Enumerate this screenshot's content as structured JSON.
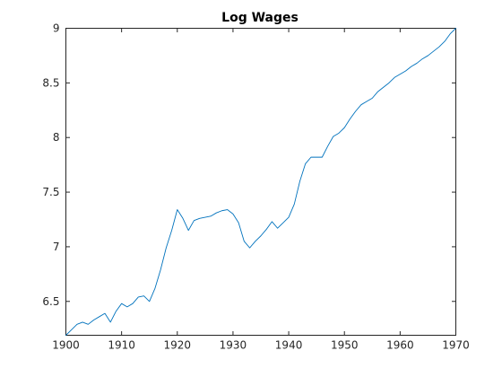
{
  "chart_data": {
    "type": "line",
    "title": "Log Wages",
    "xlabel": "",
    "ylabel": "",
    "xlim": [
      1900,
      1970
    ],
    "ylim": [
      6.19,
      9.0
    ],
    "xticks": [
      1900,
      1910,
      1920,
      1930,
      1940,
      1950,
      1960,
      1970
    ],
    "xtick_labels": [
      "1900",
      "1910",
      "1920",
      "1930",
      "1940",
      "1950",
      "1960",
      "1970"
    ],
    "yticks": [
      6.5,
      7,
      7.5,
      8,
      8.5,
      9
    ],
    "ytick_labels": [
      "6.5",
      "7",
      "7.5",
      "8",
      "8.5",
      "9"
    ],
    "grid": false,
    "legend": "none",
    "line_color": "#0072BD",
    "series": [
      {
        "x": [
          1900,
          1901,
          1902,
          1903,
          1904,
          1905,
          1906,
          1907,
          1908,
          1909,
          1910,
          1911,
          1912,
          1913,
          1914,
          1915,
          1916,
          1917,
          1918,
          1919,
          1920,
          1921,
          1922,
          1923,
          1924,
          1925,
          1926,
          1927,
          1928,
          1929,
          1930,
          1931,
          1932,
          1933,
          1934,
          1935,
          1936,
          1937,
          1938,
          1939,
          1940,
          1941,
          1942,
          1943,
          1944,
          1945,
          1946,
          1947,
          1948,
          1949,
          1950,
          1951,
          1952,
          1953,
          1954,
          1955,
          1956,
          1957,
          1958,
          1959,
          1960,
          1961,
          1962,
          1963,
          1964,
          1965,
          1966,
          1967,
          1968,
          1969,
          1970
        ],
        "values": [
          6.19,
          6.24,
          6.29,
          6.31,
          6.29,
          6.33,
          6.36,
          6.39,
          6.31,
          6.41,
          6.48,
          6.45,
          6.48,
          6.54,
          6.55,
          6.5,
          6.62,
          6.79,
          6.99,
          7.15,
          7.34,
          7.26,
          7.15,
          7.24,
          7.26,
          7.27,
          7.28,
          7.31,
          7.33,
          7.34,
          7.3,
          7.22,
          7.05,
          6.99,
          7.05,
          7.1,
          7.16,
          7.23,
          7.17,
          7.22,
          7.27,
          7.39,
          7.6,
          7.76,
          7.82,
          7.82,
          7.82,
          7.92,
          8.01,
          8.04,
          8.09,
          8.17,
          8.24,
          8.3,
          8.33,
          8.36,
          8.42,
          8.46,
          8.5,
          8.55,
          8.58,
          8.61,
          8.65,
          8.68,
          8.72,
          8.75,
          8.79,
          8.83,
          8.88,
          8.95,
          9.0
        ]
      }
    ]
  }
}
